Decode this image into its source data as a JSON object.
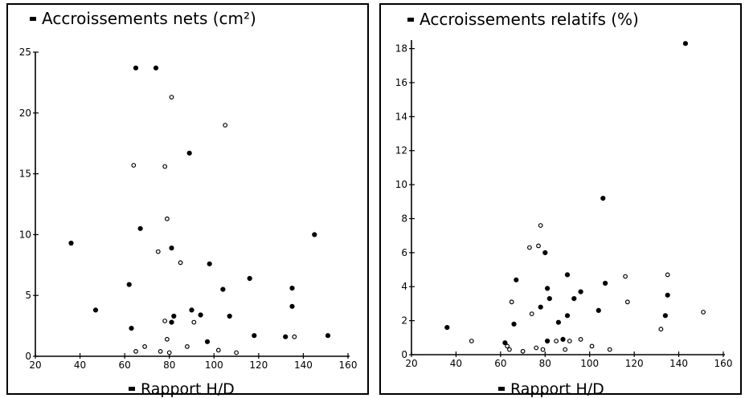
{
  "chart_data": [
    {
      "type": "scatter",
      "title": "Accroissements nets (cm²)",
      "xlabel": "Rapport H/D",
      "ylabel": "",
      "xlim": [
        20,
        160
      ],
      "ylim": [
        0,
        25
      ],
      "x_ticks": [
        20,
        40,
        60,
        80,
        100,
        120,
        140,
        160
      ],
      "y_ticks": [
        0,
        5,
        10,
        15,
        20,
        25
      ],
      "grid": false,
      "series": [
        {
          "marker": "filled",
          "points": [
            [
              36,
              9.3
            ],
            [
              47,
              3.8
            ],
            [
              62,
              5.9
            ],
            [
              63,
              2.3
            ],
            [
              65,
              23.7
            ],
            [
              67,
              10.5
            ],
            [
              74,
              23.7
            ],
            [
              81,
              8.9
            ],
            [
              82,
              3.3
            ],
            [
              81,
              2.8
            ],
            [
              89,
              16.7
            ],
            [
              90,
              3.8
            ],
            [
              94,
              3.4
            ],
            [
              97,
              1.2
            ],
            [
              98,
              7.6
            ],
            [
              104,
              5.5
            ],
            [
              107,
              3.3
            ],
            [
              116,
              6.4
            ],
            [
              118,
              1.7
            ],
            [
              132,
              1.6
            ],
            [
              135,
              5.6
            ],
            [
              135,
              4.1
            ],
            [
              145,
              10.0
            ],
            [
              151,
              1.7
            ]
          ]
        },
        {
          "marker": "open",
          "points": [
            [
              64,
              15.7
            ],
            [
              65,
              0.4
            ],
            [
              69,
              0.8
            ],
            [
              75,
              8.6
            ],
            [
              76,
              0.4
            ],
            [
              78,
              15.6
            ],
            [
              78,
              2.9
            ],
            [
              79,
              1.4
            ],
            [
              79,
              11.3
            ],
            [
              81,
              21.3
            ],
            [
              80,
              0.3
            ],
            [
              85,
              7.7
            ],
            [
              88,
              0.8
            ],
            [
              91,
              2.8
            ],
            [
              102,
              0.5
            ],
            [
              105,
              19.0
            ],
            [
              110,
              0.3
            ],
            [
              136,
              1.6
            ]
          ]
        }
      ]
    },
    {
      "type": "scatter",
      "title": "Accroissements relatifs (%)",
      "xlabel": "Rapport H/D",
      "ylabel": "",
      "xlim": [
        20,
        160
      ],
      "ylim": [
        0,
        18.5
      ],
      "x_ticks": [
        20,
        40,
        60,
        80,
        100,
        120,
        140,
        160
      ],
      "y_ticks": [
        0,
        2,
        4,
        6,
        8,
        10,
        12,
        14,
        16,
        18
      ],
      "grid": false,
      "series": [
        {
          "marker": "filled",
          "points": [
            [
              36,
              1.6
            ],
            [
              62,
              0.7
            ],
            [
              66,
              1.8
            ],
            [
              67,
              4.4
            ],
            [
              78,
              2.8
            ],
            [
              80,
              6.0
            ],
            [
              81,
              3.9
            ],
            [
              81,
              0.8
            ],
            [
              82,
              3.3
            ],
            [
              86,
              1.9
            ],
            [
              88,
              0.9
            ],
            [
              90,
              4.7
            ],
            [
              90,
              2.3
            ],
            [
              93,
              3.3
            ],
            [
              96,
              3.7
            ],
            [
              104,
              2.6
            ],
            [
              106,
              9.2
            ],
            [
              107,
              4.2
            ],
            [
              134,
              2.3
            ],
            [
              135,
              3.5
            ],
            [
              143,
              18.3
            ]
          ]
        },
        {
          "marker": "open",
          "points": [
            [
              47,
              0.8
            ],
            [
              63,
              0.5
            ],
            [
              64,
              0.3
            ],
            [
              65,
              3.1
            ],
            [
              70,
              0.2
            ],
            [
              73,
              6.3
            ],
            [
              74,
              2.4
            ],
            [
              76,
              0.4
            ],
            [
              77,
              6.4
            ],
            [
              78,
              7.6
            ],
            [
              79,
              0.3
            ],
            [
              85,
              0.8
            ],
            [
              89,
              0.3
            ],
            [
              91,
              0.8
            ],
            [
              96,
              0.9
            ],
            [
              101,
              0.5
            ],
            [
              109,
              0.3
            ],
            [
              116,
              4.6
            ],
            [
              117,
              3.1
            ],
            [
              132,
              1.5
            ],
            [
              135,
              4.7
            ],
            [
              151,
              2.5
            ]
          ]
        }
      ]
    }
  ]
}
